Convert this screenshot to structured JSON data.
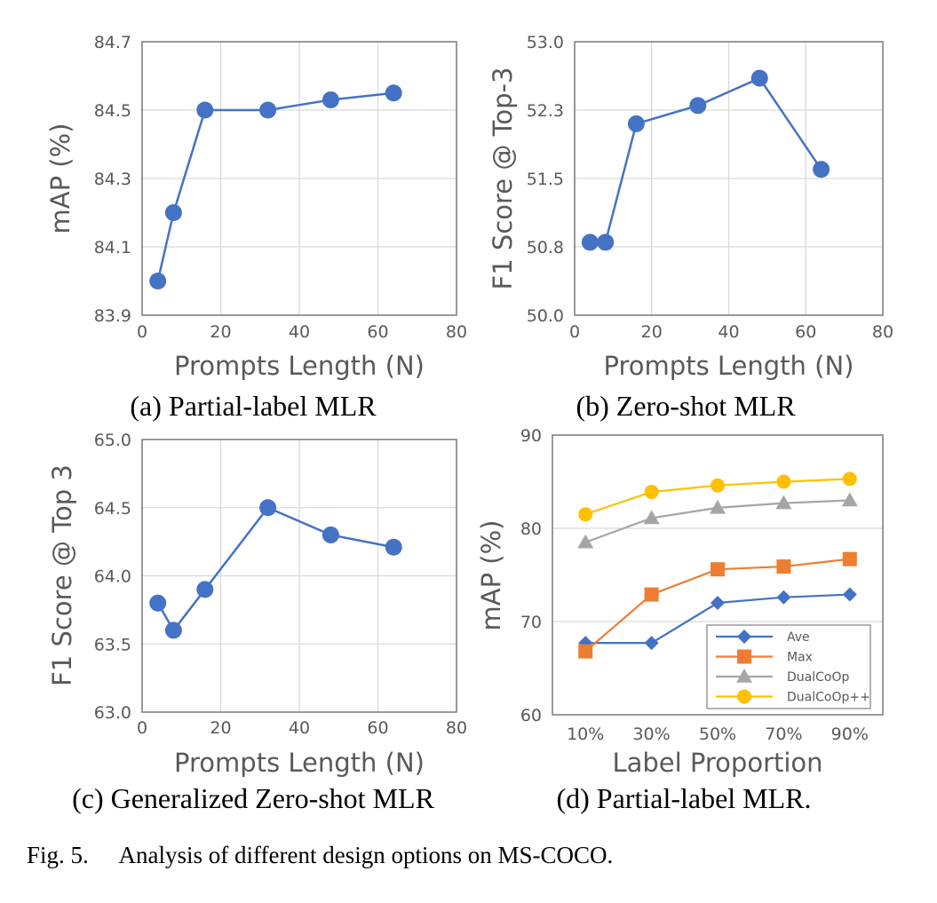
{
  "figure_caption": "Fig. 5.     Analysis of different design options on MS-COCO.",
  "colors": {
    "line_blue": "#4472c4",
    "orange": "#ed7d31",
    "gray": "#a5a5a5",
    "yellow": "#ffc000",
    "axis_text": "#595959",
    "grid": "#d9d9d9"
  },
  "chart_data": [
    {
      "type": "line",
      "caption": "(a) Partial-label MLR",
      "xlabel": "Prompts Length (N)",
      "ylabel": "mAP (%)",
      "xlim": [
        0,
        80
      ],
      "ylim": [
        83.9,
        84.7
      ],
      "xticks": [
        "0",
        "20",
        "40",
        "60",
        "80"
      ],
      "yticks": [
        "83.9",
        "84.1",
        "84.3",
        "84.5",
        "84.7"
      ],
      "grid": true,
      "series": [
        {
          "x": [
            4,
            8,
            16,
            32,
            48,
            64
          ],
          "values": [
            84.0,
            84.2,
            84.5,
            84.5,
            84.53,
            84.55
          ],
          "marker": "circle",
          "color": "#4472c4"
        }
      ]
    },
    {
      "type": "line",
      "caption": "(b) Zero-shot MLR",
      "xlabel": "Prompts Length (N)",
      "ylabel": "F1 Score @ Top-3",
      "xlim": [
        0,
        80
      ],
      "ylim": [
        50.0,
        53.0
      ],
      "xticks": [
        "0",
        "20",
        "40",
        "60",
        "80"
      ],
      "yticks": [
        "50.0",
        "50.8",
        "51.5",
        "52.3",
        "53.0"
      ],
      "grid": true,
      "series": [
        {
          "x": [
            4,
            8,
            16,
            32,
            48,
            64
          ],
          "values": [
            50.8,
            50.8,
            52.1,
            52.3,
            52.6,
            51.6
          ],
          "marker": "circle",
          "color": "#4472c4"
        }
      ]
    },
    {
      "type": "line",
      "caption": "(c) Generalized Zero-shot MLR",
      "xlabel": "Prompts Length (N)",
      "ylabel": "F1 Score @ Top 3",
      "xlim": [
        0,
        80
      ],
      "ylim": [
        63.0,
        65.0
      ],
      "xticks": [
        "0",
        "20",
        "40",
        "60",
        "80"
      ],
      "yticks": [
        "63.0",
        "63.5",
        "64.0",
        "64.5",
        "65.0"
      ],
      "grid": true,
      "series": [
        {
          "x": [
            4,
            8,
            16,
            32,
            48,
            64
          ],
          "values": [
            63.8,
            63.6,
            63.9,
            64.5,
            64.3,
            64.21
          ],
          "marker": "circle",
          "color": "#4472c4"
        }
      ]
    },
    {
      "type": "line",
      "caption": "(d) Partial-label MLR.",
      "xlabel": "Label Proportion",
      "ylabel": "mAP (%)",
      "categories": [
        "10%",
        "30%",
        "50%",
        "70%",
        "90%"
      ],
      "ylim": [
        60,
        90
      ],
      "yticks": [
        "60",
        "70",
        "80",
        "90"
      ],
      "grid": true,
      "legend": "bottom-right",
      "series": [
        {
          "name": "Ave",
          "values": [
            67.7,
            67.7,
            72.0,
            72.6,
            72.9
          ],
          "marker": "diamond",
          "color": "#4472c4"
        },
        {
          "name": "Max",
          "values": [
            66.8,
            72.9,
            75.6,
            75.9,
            76.7
          ],
          "marker": "square",
          "color": "#ed7d31"
        },
        {
          "name": "DualCoOp",
          "values": [
            78.5,
            81.1,
            82.2,
            82.7,
            83.0
          ],
          "marker": "triangle",
          "color": "#a5a5a5"
        },
        {
          "name": "DualCoOp++",
          "values": [
            81.5,
            83.9,
            84.6,
            85.0,
            85.3
          ],
          "marker": "circle",
          "color": "#ffc000"
        }
      ]
    }
  ]
}
